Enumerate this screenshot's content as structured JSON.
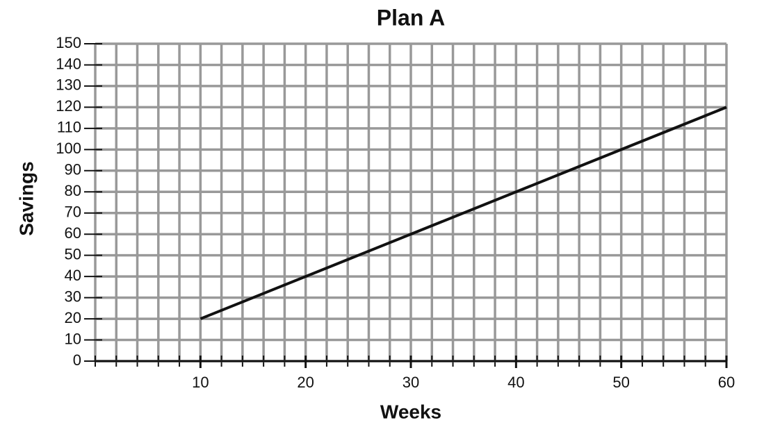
{
  "chart_data": {
    "type": "line",
    "title": "Plan A",
    "x_label": "Weeks",
    "y_label": "Savings",
    "x": [
      10,
      60
    ],
    "series": [
      {
        "color": "#111111",
        "values": [
          20,
          120
        ]
      }
    ],
    "xlim": [
      0,
      60
    ],
    "xticks": [
      10,
      20,
      30,
      40,
      50,
      60
    ],
    "x_minor_ticks": [
      0,
      2,
      4,
      6,
      8,
      10,
      12,
      14,
      16,
      18,
      20,
      22,
      24,
      26,
      28,
      30,
      32,
      34,
      36,
      38,
      40,
      42,
      44,
      46,
      48,
      50,
      52,
      54,
      56,
      58,
      60
    ],
    "ylim": [
      0,
      150
    ],
    "yticks": [
      0,
      10,
      20,
      30,
      40,
      50,
      60,
      70,
      80,
      90,
      100,
      110,
      120,
      130,
      140,
      150
    ],
    "grid": true
  }
}
